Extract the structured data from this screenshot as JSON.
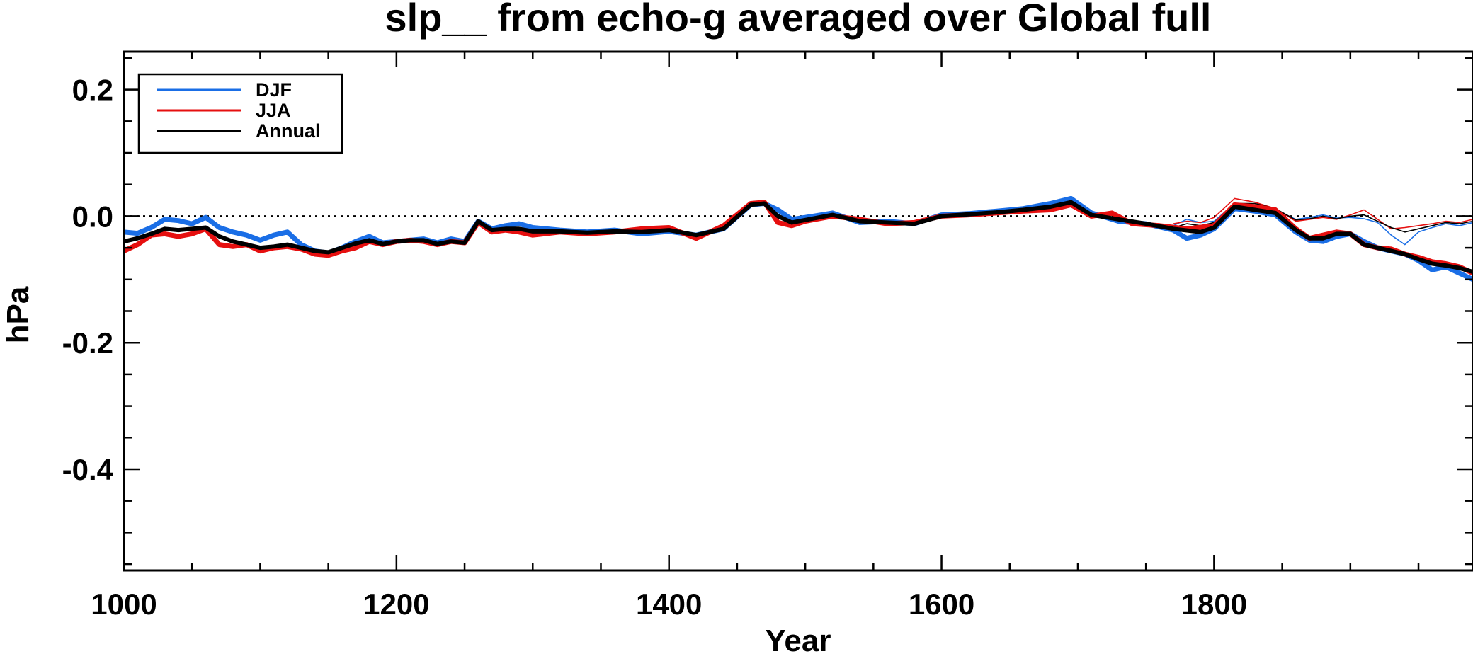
{
  "chart_data": {
    "type": "line",
    "title": "slp__ from echo-g averaged over Global full",
    "xlabel": "Year",
    "ylabel": "hPa",
    "xlim": [
      1000,
      1990
    ],
    "ylim": [
      -0.56,
      0.26
    ],
    "xticks": [
      1000,
      1200,
      1400,
      1600,
      1800
    ],
    "xtick_labels": [
      "1000",
      "1200",
      "1400",
      "1600",
      "1800"
    ],
    "yticks": [
      0.2,
      0.0,
      -0.2,
      -0.4
    ],
    "ytick_labels": [
      "0.2",
      "0.0",
      "-0.2",
      "-0.4"
    ],
    "reference_line": 0.0,
    "grid": false,
    "legend_position": "top-left",
    "series": [
      {
        "name": "DJF",
        "color": "#1a6ee6",
        "points": [
          [
            1000,
            -0.025
          ],
          [
            1010,
            -0.027
          ],
          [
            1020,
            -0.018
          ],
          [
            1030,
            -0.005
          ],
          [
            1040,
            -0.007
          ],
          [
            1050,
            -0.012
          ],
          [
            1060,
            -0.002
          ],
          [
            1070,
            -0.018
          ],
          [
            1080,
            -0.025
          ],
          [
            1090,
            -0.03
          ],
          [
            1100,
            -0.038
          ],
          [
            1110,
            -0.03
          ],
          [
            1120,
            -0.025
          ],
          [
            1130,
            -0.045
          ],
          [
            1140,
            -0.055
          ],
          [
            1150,
            -0.058
          ],
          [
            1160,
            -0.05
          ],
          [
            1170,
            -0.04
          ],
          [
            1180,
            -0.032
          ],
          [
            1190,
            -0.042
          ],
          [
            1200,
            -0.04
          ],
          [
            1210,
            -0.038
          ],
          [
            1220,
            -0.036
          ],
          [
            1230,
            -0.042
          ],
          [
            1240,
            -0.036
          ],
          [
            1250,
            -0.04
          ],
          [
            1260,
            -0.008
          ],
          [
            1270,
            -0.02
          ],
          [
            1280,
            -0.015
          ],
          [
            1290,
            -0.012
          ],
          [
            1300,
            -0.018
          ],
          [
            1320,
            -0.022
          ],
          [
            1340,
            -0.025
          ],
          [
            1360,
            -0.022
          ],
          [
            1380,
            -0.028
          ],
          [
            1400,
            -0.024
          ],
          [
            1420,
            -0.03
          ],
          [
            1440,
            -0.02
          ],
          [
            1460,
            0.018
          ],
          [
            1470,
            0.02
          ],
          [
            1480,
            0.01
          ],
          [
            1490,
            -0.005
          ],
          [
            1500,
            -0.002
          ],
          [
            1520,
            0.005
          ],
          [
            1540,
            -0.01
          ],
          [
            1560,
            -0.008
          ],
          [
            1580,
            -0.012
          ],
          [
            1600,
            0.002
          ],
          [
            1620,
            0.004
          ],
          [
            1640,
            0.008
          ],
          [
            1660,
            0.012
          ],
          [
            1680,
            0.02
          ],
          [
            1695,
            0.028
          ],
          [
            1710,
            0.005
          ],
          [
            1730,
            -0.008
          ],
          [
            1750,
            -0.012
          ],
          [
            1770,
            -0.022
          ],
          [
            1780,
            -0.035
          ],
          [
            1790,
            -0.03
          ],
          [
            1800,
            -0.02
          ],
          [
            1815,
            0.012
          ],
          [
            1830,
            0.008
          ],
          [
            1845,
            0.002
          ],
          [
            1860,
            -0.025
          ],
          [
            1870,
            -0.038
          ],
          [
            1880,
            -0.04
          ],
          [
            1890,
            -0.032
          ],
          [
            1900,
            -0.028
          ],
          [
            1910,
            -0.04
          ],
          [
            1920,
            -0.05
          ],
          [
            1930,
            -0.055
          ],
          [
            1940,
            -0.06
          ],
          [
            1950,
            -0.07
          ],
          [
            1960,
            -0.085
          ],
          [
            1970,
            -0.08
          ],
          [
            1980,
            -0.09
          ],
          [
            1990,
            -0.1
          ]
        ]
      },
      {
        "name": "JJA",
        "color": "#e60f0f",
        "points": [
          [
            1000,
            -0.055
          ],
          [
            1010,
            -0.045
          ],
          [
            1020,
            -0.03
          ],
          [
            1030,
            -0.028
          ],
          [
            1040,
            -0.032
          ],
          [
            1050,
            -0.028
          ],
          [
            1060,
            -0.02
          ],
          [
            1070,
            -0.045
          ],
          [
            1080,
            -0.048
          ],
          [
            1090,
            -0.045
          ],
          [
            1100,
            -0.055
          ],
          [
            1110,
            -0.05
          ],
          [
            1120,
            -0.048
          ],
          [
            1130,
            -0.052
          ],
          [
            1140,
            -0.06
          ],
          [
            1150,
            -0.062
          ],
          [
            1160,
            -0.055
          ],
          [
            1170,
            -0.05
          ],
          [
            1180,
            -0.04
          ],
          [
            1190,
            -0.045
          ],
          [
            1200,
            -0.04
          ],
          [
            1210,
            -0.038
          ],
          [
            1220,
            -0.04
          ],
          [
            1230,
            -0.045
          ],
          [
            1240,
            -0.04
          ],
          [
            1250,
            -0.042
          ],
          [
            1260,
            -0.01
          ],
          [
            1270,
            -0.025
          ],
          [
            1280,
            -0.022
          ],
          [
            1290,
            -0.025
          ],
          [
            1300,
            -0.03
          ],
          [
            1320,
            -0.025
          ],
          [
            1340,
            -0.028
          ],
          [
            1360,
            -0.025
          ],
          [
            1380,
            -0.02
          ],
          [
            1400,
            -0.018
          ],
          [
            1420,
            -0.035
          ],
          [
            1440,
            -0.015
          ],
          [
            1460,
            0.02
          ],
          [
            1470,
            0.022
          ],
          [
            1480,
            -0.01
          ],
          [
            1490,
            -0.015
          ],
          [
            1500,
            -0.008
          ],
          [
            1520,
            0.0
          ],
          [
            1540,
            -0.005
          ],
          [
            1560,
            -0.012
          ],
          [
            1580,
            -0.01
          ],
          [
            1600,
            0.0
          ],
          [
            1620,
            0.002
          ],
          [
            1640,
            0.005
          ],
          [
            1660,
            0.008
          ],
          [
            1680,
            0.01
          ],
          [
            1695,
            0.018
          ],
          [
            1710,
            0.0
          ],
          [
            1725,
            0.005
          ],
          [
            1740,
            -0.012
          ],
          [
            1760,
            -0.015
          ],
          [
            1780,
            -0.02
          ],
          [
            1800,
            -0.015
          ],
          [
            1815,
            0.018
          ],
          [
            1830,
            0.015
          ],
          [
            1845,
            0.01
          ],
          [
            1860,
            -0.02
          ],
          [
            1870,
            -0.035
          ],
          [
            1880,
            -0.03
          ],
          [
            1890,
            -0.025
          ],
          [
            1900,
            -0.028
          ],
          [
            1910,
            -0.045
          ],
          [
            1920,
            -0.05
          ],
          [
            1930,
            -0.052
          ],
          [
            1940,
            -0.06
          ],
          [
            1950,
            -0.065
          ],
          [
            1960,
            -0.072
          ],
          [
            1970,
            -0.075
          ],
          [
            1980,
            -0.08
          ],
          [
            1990,
            -0.09
          ]
        ]
      },
      {
        "name": "Annual",
        "color": "#000000",
        "points": [
          [
            1000,
            -0.04
          ],
          [
            1010,
            -0.035
          ],
          [
            1020,
            -0.028
          ],
          [
            1030,
            -0.02
          ],
          [
            1040,
            -0.022
          ],
          [
            1050,
            -0.02
          ],
          [
            1060,
            -0.018
          ],
          [
            1070,
            -0.032
          ],
          [
            1080,
            -0.04
          ],
          [
            1090,
            -0.045
          ],
          [
            1100,
            -0.05
          ],
          [
            1110,
            -0.048
          ],
          [
            1120,
            -0.045
          ],
          [
            1130,
            -0.05
          ],
          [
            1140,
            -0.055
          ],
          [
            1150,
            -0.057
          ],
          [
            1160,
            -0.05
          ],
          [
            1170,
            -0.043
          ],
          [
            1180,
            -0.038
          ],
          [
            1190,
            -0.044
          ],
          [
            1200,
            -0.04
          ],
          [
            1210,
            -0.038
          ],
          [
            1220,
            -0.038
          ],
          [
            1230,
            -0.044
          ],
          [
            1240,
            -0.04
          ],
          [
            1250,
            -0.042
          ],
          [
            1260,
            -0.008
          ],
          [
            1270,
            -0.022
          ],
          [
            1280,
            -0.02
          ],
          [
            1290,
            -0.02
          ],
          [
            1300,
            -0.024
          ],
          [
            1320,
            -0.024
          ],
          [
            1340,
            -0.026
          ],
          [
            1360,
            -0.024
          ],
          [
            1380,
            -0.025
          ],
          [
            1400,
            -0.022
          ],
          [
            1420,
            -0.03
          ],
          [
            1440,
            -0.02
          ],
          [
            1460,
            0.018
          ],
          [
            1470,
            0.02
          ],
          [
            1480,
            0.0
          ],
          [
            1490,
            -0.01
          ],
          [
            1500,
            -0.006
          ],
          [
            1520,
            0.002
          ],
          [
            1540,
            -0.008
          ],
          [
            1560,
            -0.01
          ],
          [
            1580,
            -0.012
          ],
          [
            1600,
            0.0
          ],
          [
            1620,
            0.003
          ],
          [
            1640,
            0.006
          ],
          [
            1660,
            0.01
          ],
          [
            1680,
            0.015
          ],
          [
            1695,
            0.022
          ],
          [
            1710,
            0.002
          ],
          [
            1730,
            -0.005
          ],
          [
            1750,
            -0.012
          ],
          [
            1770,
            -0.02
          ],
          [
            1790,
            -0.025
          ],
          [
            1800,
            -0.018
          ],
          [
            1815,
            0.015
          ],
          [
            1830,
            0.01
          ],
          [
            1845,
            0.005
          ],
          [
            1860,
            -0.022
          ],
          [
            1870,
            -0.035
          ],
          [
            1880,
            -0.035
          ],
          [
            1890,
            -0.028
          ],
          [
            1900,
            -0.028
          ],
          [
            1910,
            -0.045
          ],
          [
            1920,
            -0.05
          ],
          [
            1930,
            -0.055
          ],
          [
            1940,
            -0.06
          ],
          [
            1950,
            -0.068
          ],
          [
            1960,
            -0.075
          ],
          [
            1970,
            -0.078
          ],
          [
            1980,
            -0.082
          ],
          [
            1990,
            -0.088
          ]
        ]
      }
    ],
    "thin_series": [
      {
        "color": "#1a6ee6",
        "points": [
          [
            1770,
            -0.015
          ],
          [
            1780,
            -0.005
          ],
          [
            1790,
            -0.01
          ],
          [
            1800,
            -0.008
          ],
          [
            1815,
            0.02
          ],
          [
            1830,
            0.018
          ],
          [
            1845,
            0.01
          ],
          [
            1860,
            -0.005
          ],
          [
            1870,
            -0.002
          ],
          [
            1880,
            0.002
          ],
          [
            1890,
            -0.003
          ],
          [
            1900,
            -0.002
          ],
          [
            1910,
            -0.004
          ],
          [
            1920,
            -0.01
          ],
          [
            1930,
            -0.03
          ],
          [
            1940,
            -0.045
          ],
          [
            1950,
            -0.025
          ],
          [
            1960,
            -0.018
          ],
          [
            1970,
            -0.012
          ],
          [
            1980,
            -0.015
          ],
          [
            1990,
            -0.01
          ]
        ]
      },
      {
        "color": "#e60f0f",
        "points": [
          [
            1770,
            -0.012
          ],
          [
            1780,
            -0.008
          ],
          [
            1790,
            -0.01
          ],
          [
            1800,
            -0.002
          ],
          [
            1815,
            0.028
          ],
          [
            1830,
            0.022
          ],
          [
            1845,
            0.012
          ],
          [
            1860,
            -0.008
          ],
          [
            1870,
            -0.005
          ],
          [
            1880,
            -0.002
          ],
          [
            1890,
            -0.005
          ],
          [
            1900,
            0.002
          ],
          [
            1910,
            0.01
          ],
          [
            1920,
            -0.005
          ],
          [
            1930,
            -0.02
          ],
          [
            1940,
            -0.018
          ],
          [
            1950,
            -0.015
          ],
          [
            1960,
            -0.012
          ],
          [
            1970,
            -0.008
          ],
          [
            1980,
            -0.01
          ],
          [
            1990,
            -0.005
          ]
        ]
      },
      {
        "color": "#000000",
        "points": [
          [
            1770,
            -0.018
          ],
          [
            1780,
            -0.012
          ],
          [
            1790,
            -0.015
          ],
          [
            1800,
            -0.01
          ],
          [
            1815,
            0.02
          ],
          [
            1830,
            0.02
          ],
          [
            1845,
            0.012
          ],
          [
            1860,
            -0.006
          ],
          [
            1870,
            -0.004
          ],
          [
            1880,
            0.0
          ],
          [
            1890,
            -0.004
          ],
          [
            1900,
            0.0
          ],
          [
            1910,
            0.002
          ],
          [
            1920,
            -0.008
          ],
          [
            1930,
            -0.018
          ],
          [
            1940,
            -0.025
          ],
          [
            1950,
            -0.02
          ],
          [
            1960,
            -0.015
          ],
          [
            1970,
            -0.01
          ],
          [
            1980,
            -0.012
          ],
          [
            1990,
            -0.008
          ]
        ]
      }
    ]
  }
}
